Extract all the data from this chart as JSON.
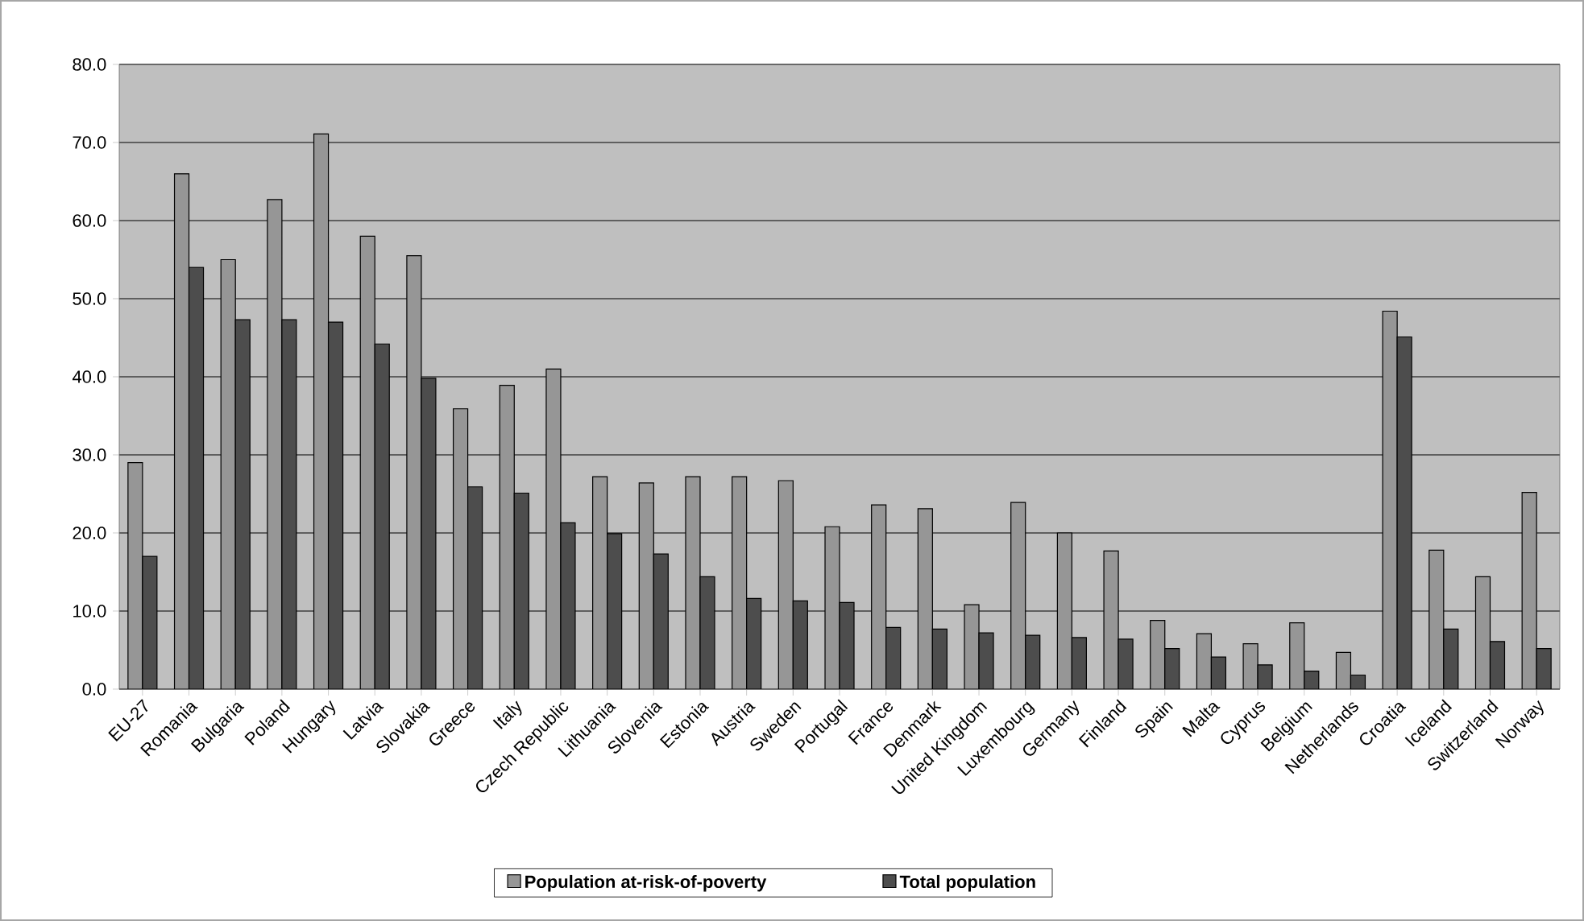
{
  "chart_data": {
    "type": "bar",
    "categories": [
      "EU-27",
      "Romania",
      "Bulgaria",
      "Poland",
      "Hungary",
      "Latvia",
      "Slovakia",
      "Greece",
      "Italy",
      "Czech Republic",
      "Lithuania",
      "Slovenia",
      "Estonia",
      "Austria",
      "Sweden",
      "Portugal",
      "France",
      "Denmark",
      "United Kingdom",
      "Luxembourg",
      "Germany",
      "Finland",
      "Spain",
      "Malta",
      "Cyprus",
      "Belgium",
      "Netherlands",
      "Croatia",
      "Iceland",
      "Switzerland",
      "Norway"
    ],
    "series": [
      {
        "name": "Population at-risk-of-poverty",
        "color": "#969696",
        "values": [
          29.0,
          66.0,
          55.0,
          62.7,
          71.1,
          58.0,
          55.5,
          35.9,
          38.9,
          41.0,
          27.2,
          26.4,
          27.2,
          27.2,
          26.7,
          20.8,
          23.6,
          23.1,
          10.8,
          23.9,
          20.0,
          17.7,
          8.8,
          7.1,
          5.8,
          8.5,
          4.7,
          48.4,
          17.8,
          14.4,
          25.2
        ]
      },
      {
        "name": "Total population",
        "color": "#4d4d4d",
        "values": [
          17.0,
          54.0,
          47.3,
          47.3,
          47.0,
          44.2,
          39.8,
          25.9,
          25.1,
          21.3,
          19.9,
          17.3,
          14.4,
          11.6,
          11.3,
          11.1,
          7.9,
          7.7,
          7.2,
          6.9,
          6.6,
          6.4,
          5.2,
          4.1,
          3.1,
          2.3,
          1.8,
          45.1,
          7.7,
          6.1,
          5.2
        ]
      }
    ],
    "ylim": [
      0,
      80
    ],
    "yticks": [
      {
        "value": 0,
        "label": "0.0"
      },
      {
        "value": 10,
        "label": "10.0"
      },
      {
        "value": 20,
        "label": "20.0"
      },
      {
        "value": 30,
        "label": "30.0"
      },
      {
        "value": 40,
        "label": "40.0"
      },
      {
        "value": 50,
        "label": "50.0"
      },
      {
        "value": 60,
        "label": "60.0"
      },
      {
        "value": 70,
        "label": "70.0"
      },
      {
        "value": 80,
        "label": "80.0"
      }
    ],
    "grid": "y",
    "legend": "bottom"
  }
}
